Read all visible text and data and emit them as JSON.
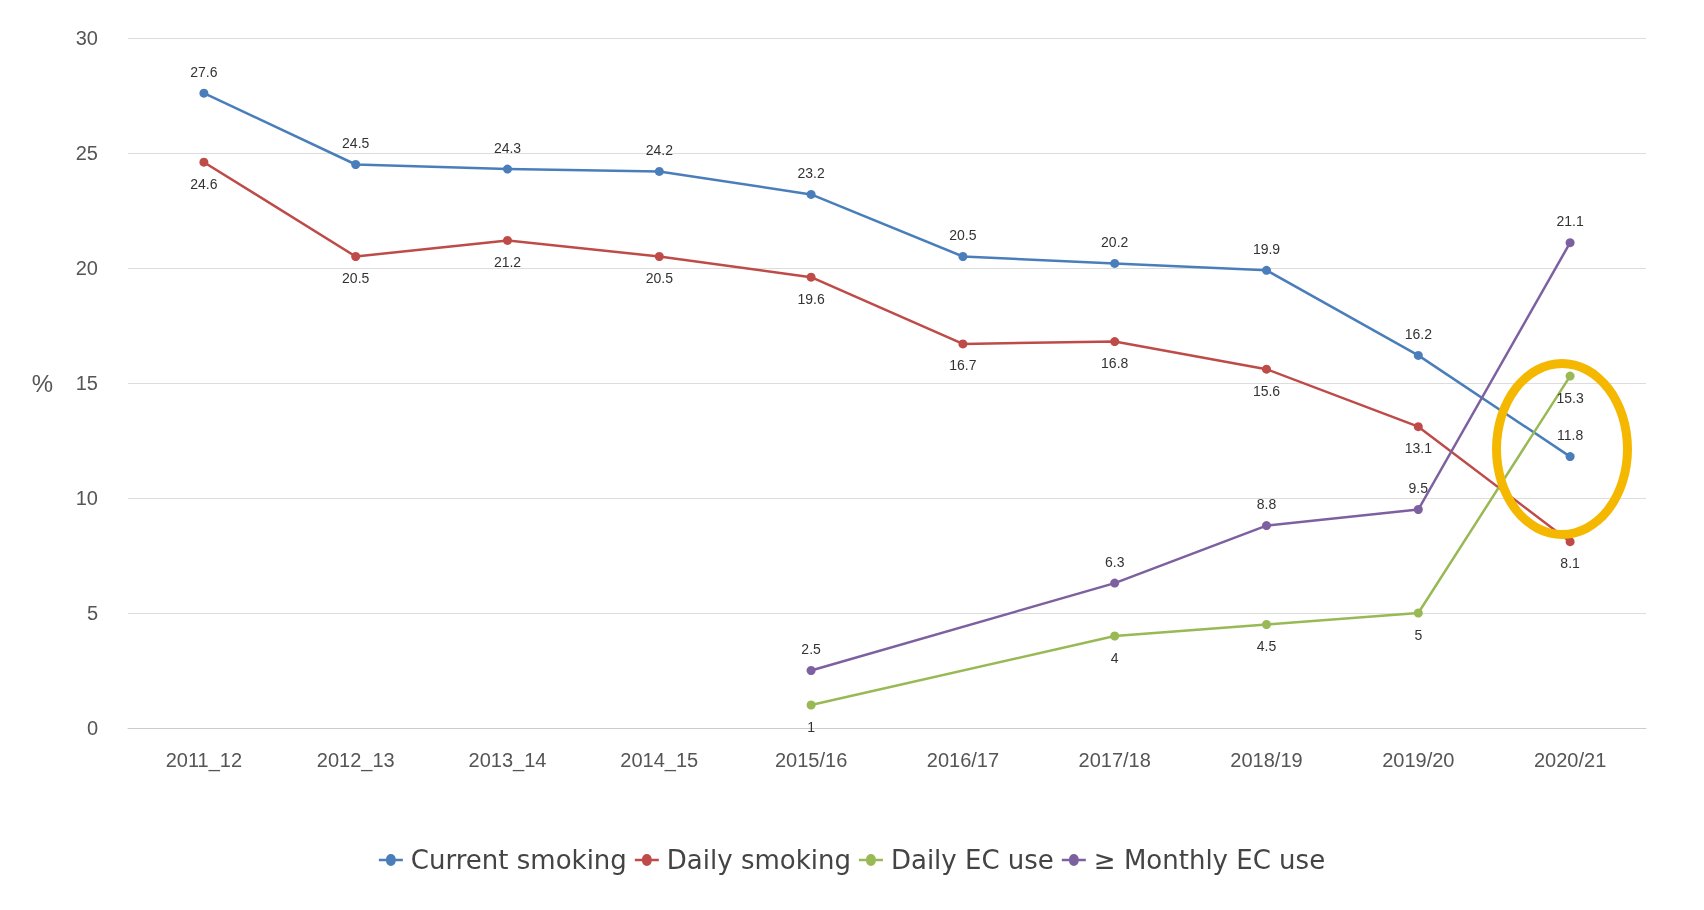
{
  "chart_data": {
    "type": "line",
    "ylabel": "%",
    "categories": [
      "2011_12",
      "2012_13",
      "2013_14",
      "2014_15",
      "2015/16",
      "2016/17",
      "2017/18",
      "2018/19",
      "2019/20",
      "2020/21"
    ],
    "series": [
      {
        "name": "Current smoking",
        "color": "#4a7ebb",
        "values": [
          27.6,
          24.5,
          24.3,
          24.2,
          23.2,
          20.5,
          20.2,
          19.9,
          16.2,
          11.8
        ]
      },
      {
        "name": "Daily smoking",
        "color": "#be4b48",
        "values": [
          24.6,
          20.5,
          21.2,
          20.5,
          19.6,
          16.7,
          16.8,
          15.6,
          13.1,
          8.1
        ]
      },
      {
        "name": "Daily EC use",
        "color": "#98b954",
        "values": [
          null,
          null,
          null,
          null,
          1,
          null,
          4,
          4.5,
          5,
          15.3
        ]
      },
      {
        "name": "≥ Monthly EC use",
        "color": "#7d60a0",
        "values": [
          null,
          null,
          null,
          null,
          2.5,
          null,
          6.3,
          8.8,
          9.5,
          21.1
        ]
      }
    ],
    "ylim": [
      0,
      30
    ],
    "yticks": [
      0,
      5,
      10,
      15,
      20,
      25,
      30
    ],
    "grid": "y",
    "legend": "bottom",
    "data_labels": true,
    "marker": "circle",
    "line_style": "solid"
  }
}
